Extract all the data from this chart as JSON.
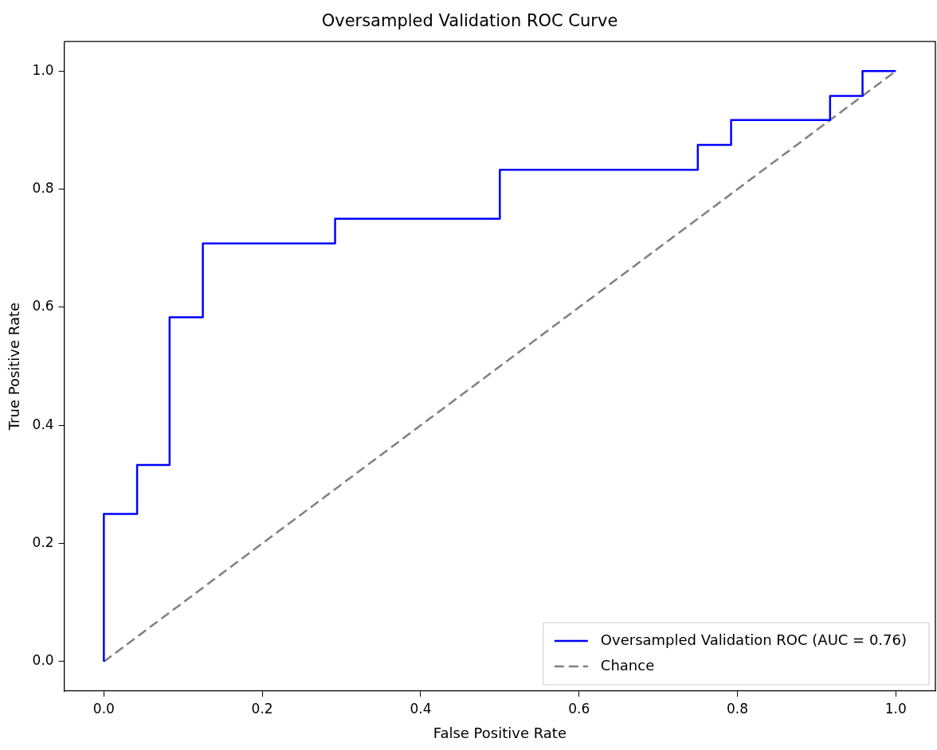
{
  "chart_data": {
    "type": "line",
    "title": "Oversampled Validation ROC Curve",
    "xlabel": "False Positive Rate",
    "ylabel": "True Positive Rate",
    "series": [
      {
        "name": "Oversampled Validation ROC (AUC = 0.76)",
        "color": "#0000ff",
        "line_style": "solid",
        "x": [
          0,
          0,
          0.042,
          0.042,
          0.083,
          0.083,
          0.125,
          0.125,
          0.292,
          0.292,
          0.5,
          0.5,
          0.75,
          0.75,
          0.792,
          0.792,
          0.917,
          0.917,
          0.958,
          0.958,
          1
        ],
        "values": [
          0,
          0.25,
          0.25,
          0.333,
          0.333,
          0.583,
          0.583,
          0.708,
          0.708,
          0.75,
          0.75,
          0.833,
          0.833,
          0.875,
          0.875,
          0.917,
          0.917,
          0.958,
          0.958,
          1,
          1
        ]
      },
      {
        "name": "Chance",
        "color": "#808080",
        "line_style": "dashed",
        "x": [
          0,
          1
        ],
        "values": [
          0,
          1
        ]
      }
    ],
    "xlim": [
      -0.05,
      1.05
    ],
    "ylim": [
      -0.05,
      1.05
    ],
    "xticks": [
      {
        "value": 0,
        "label": "0.0"
      },
      {
        "value": 0.2,
        "label": "0.2"
      },
      {
        "value": 0.4,
        "label": "0.4"
      },
      {
        "value": 0.6,
        "label": "0.6"
      },
      {
        "value": 0.8,
        "label": "0.8"
      },
      {
        "value": 1,
        "label": "1.0"
      }
    ],
    "yticks": [
      {
        "value": 0,
        "label": "0.0"
      },
      {
        "value": 0.2,
        "label": "0.2"
      },
      {
        "value": 0.4,
        "label": "0.4"
      },
      {
        "value": 0.6,
        "label": "0.6"
      },
      {
        "value": 0.8,
        "label": "0.8"
      },
      {
        "value": 1,
        "label": "1.0"
      }
    ],
    "grid": false,
    "legend": "bottom right",
    "marker": "none"
  }
}
